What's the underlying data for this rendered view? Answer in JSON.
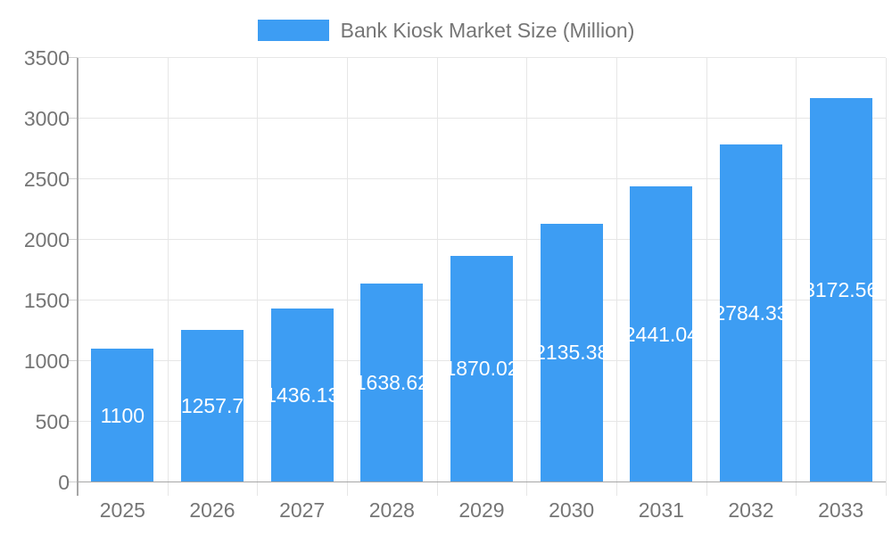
{
  "legend": {
    "label": "Bank Kiosk Market Size (Million)"
  },
  "chart_data": {
    "type": "bar",
    "title": "Bank Kiosk Market Size (Million)",
    "categories": [
      "2025",
      "2026",
      "2027",
      "2028",
      "2029",
      "2030",
      "2031",
      "2032",
      "2033"
    ],
    "values": [
      1100,
      1257.7,
      1436.13,
      1638.62,
      1870.02,
      2135.38,
      2441.04,
      2784.33,
      3172.56
    ],
    "labels": [
      "1100",
      "1257.7",
      "1436.13",
      "1638.62",
      "1870.02",
      "2135.38",
      "2441.04",
      "2784.33",
      "3172.56"
    ],
    "xlabel": "",
    "ylabel": "",
    "ylim": [
      0,
      3500
    ],
    "yticks": [
      0,
      500,
      1000,
      1500,
      2000,
      2500,
      3000,
      3500
    ],
    "grid": true,
    "legend_position": "top"
  },
  "colors": {
    "bar": "#3D9DF3",
    "axis_text": "#757575",
    "grid": "#e6e6e6",
    "axis_line": "#a6a6a6",
    "tick": "#cfcfcf",
    "value_label": "#ffffff",
    "background": "#ffffff"
  }
}
